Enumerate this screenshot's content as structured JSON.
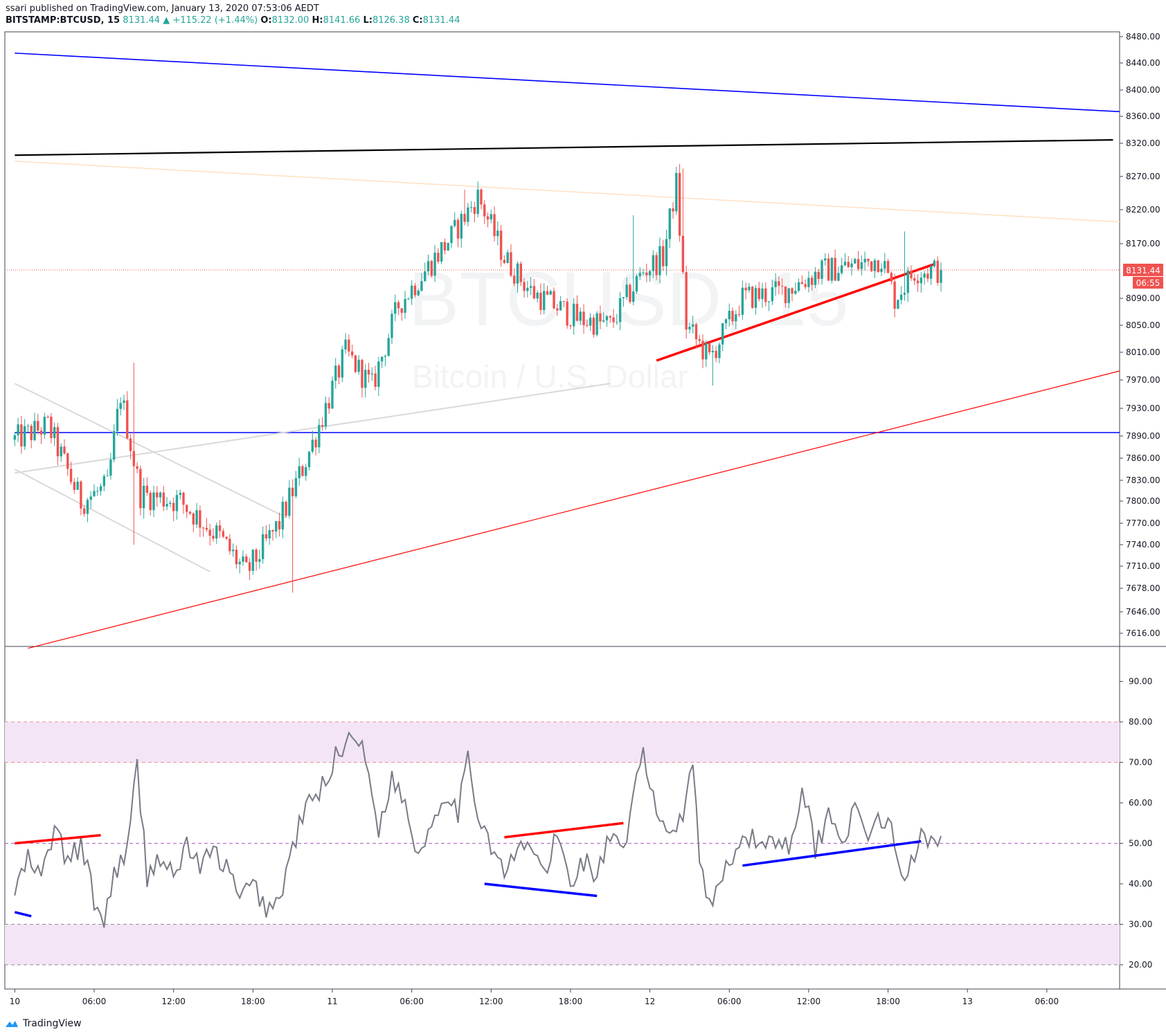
{
  "header": {
    "published": "ssari published on TradingView.com, January 13, 2020 07:53:06 AEDT",
    "symbol": "BITSTAMP:BTCUSD, 15",
    "last": "8131.44",
    "change": "▲ +115.22 (+1.44%)",
    "o_label": "O:",
    "o_value": "8132.00",
    "h_label": "H:",
    "h_value": "8141.66",
    "l_label": "L:",
    "l_value": "8126.38",
    "c_label": "C:",
    "c_value": "8131.44"
  },
  "watermark": {
    "symbol": "BTCUSD, 15",
    "description": "Bitcoin / U.S. Dollar"
  },
  "price_badge": {
    "price": "8131.44",
    "countdown": "06:55"
  },
  "footer": {
    "brand": "TradingView"
  },
  "colors": {
    "up": "#26a69a",
    "down": "#ef5350",
    "blue_line": "#0000ff",
    "black_line": "#000000",
    "red_line": "#ff0000",
    "rsi_line": "#787b86",
    "rsi_band": "#f3e5f5",
    "peach_line": "#ffe0c2"
  },
  "chart_data": [
    {
      "type": "candlestick",
      "symbol": "BITSTAMP:BTCUSD",
      "interval": "15",
      "y_ticks": [
        "8480.00",
        "8440.00",
        "8400.00",
        "8360.00",
        "8320.00",
        "8270.00",
        "8220.00",
        "8170.00",
        "8090.00",
        "8050.00",
        "8010.00",
        "7970.00",
        "7930.00",
        "7890.00",
        "7860.00",
        "7830.00",
        "7800.00",
        "7770.00",
        "7740.00",
        "7710.00",
        "7678.00",
        "7646.00",
        "7616.00"
      ],
      "x_ticks": [
        "10",
        "06:00",
        "12:00",
        "18:00",
        "11",
        "06:00",
        "12:00",
        "18:00",
        "12",
        "06:00",
        "12:00",
        "18:00",
        "13",
        "06:00",
        "12:00",
        "18:00"
      ],
      "current_price": 8131.44,
      "close_path": [
        {
          "t": 0,
          "price": 7885
        },
        {
          "t": 10,
          "price": 7905
        },
        {
          "t": 20,
          "price": 7800
        },
        {
          "t": 28,
          "price": 7820
        },
        {
          "t": 32,
          "price": 7950
        },
        {
          "t": 38,
          "price": 7810
        },
        {
          "t": 50,
          "price": 7800
        },
        {
          "t": 62,
          "price": 7750
        },
        {
          "t": 70,
          "price": 7700
        },
        {
          "t": 80,
          "price": 7770
        },
        {
          "t": 90,
          "price": 7880
        },
        {
          "t": 100,
          "price": 8010
        },
        {
          "t": 108,
          "price": 7960
        },
        {
          "t": 116,
          "price": 8080
        },
        {
          "t": 124,
          "price": 8130
        },
        {
          "t": 132,
          "price": 8180
        },
        {
          "t": 140,
          "price": 8240
        },
        {
          "t": 148,
          "price": 8150
        },
        {
          "t": 156,
          "price": 8100
        },
        {
          "t": 170,
          "price": 8060
        },
        {
          "t": 180,
          "price": 8050
        },
        {
          "t": 190,
          "price": 8130
        },
        {
          "t": 196,
          "price": 8150
        },
        {
          "t": 200,
          "price": 8260
        },
        {
          "t": 203,
          "price": 8050
        },
        {
          "t": 210,
          "price": 8000
        },
        {
          "t": 220,
          "price": 8090
        },
        {
          "t": 232,
          "price": 8100
        },
        {
          "t": 244,
          "price": 8130
        },
        {
          "t": 256,
          "price": 8140
        },
        {
          "t": 262,
          "price": 8150
        },
        {
          "t": 266,
          "price": 8090
        },
        {
          "t": 272,
          "price": 8130
        },
        {
          "t": 280,
          "price": 8131
        }
      ],
      "spikes": [
        {
          "t": 36,
          "high": 7995,
          "low": 7740
        },
        {
          "t": 84,
          "low": 7672
        },
        {
          "t": 136,
          "high": 8250
        },
        {
          "t": 187,
          "high": 8212
        },
        {
          "t": 202,
          "high": 8282
        },
        {
          "t": 211,
          "low": 7962
        },
        {
          "t": 269,
          "high": 8188
        }
      ],
      "trendlines": [
        {
          "color": "blue",
          "from": {
            "t": 0,
            "price": 8455
          },
          "to": {
            "t": 334,
            "price": 8367
          }
        },
        {
          "color": "black",
          "from": {
            "t": 0,
            "price": 8302
          },
          "to": {
            "t": 332,
            "price": 8325
          }
        },
        {
          "color": "peach",
          "from": {
            "t": 0,
            "price": 8293
          },
          "to": {
            "t": 334,
            "price": 8202
          }
        },
        {
          "color": "blue",
          "from": {
            "t": 0,
            "price": 7895
          },
          "to": {
            "t": 334,
            "price": 7895
          }
        },
        {
          "color": "red",
          "from": {
            "t": 4,
            "price": 7595
          },
          "to": {
            "t": 334,
            "price": 7983
          }
        },
        {
          "color": "red-thick",
          "from": {
            "t": 194,
            "price": 7998
          },
          "to": {
            "t": 278,
            "price": 8140
          }
        },
        {
          "color": "lightgray",
          "from": {
            "t": 0,
            "price": 7840
          },
          "to": {
            "t": 180,
            "price": 7965
          }
        },
        {
          "color": "lightgray",
          "from": {
            "t": 0,
            "price": 7965
          },
          "to": {
            "t": 82,
            "price": 7778
          }
        },
        {
          "color": "lightgray",
          "from": {
            "t": 0,
            "price": 7845
          },
          "to": {
            "t": 59,
            "price": 7702
          }
        }
      ]
    },
    {
      "type": "line",
      "indicator": "RSI",
      "y_ticks": [
        "90.00",
        "80.00",
        "70.00",
        "60.00",
        "50.00",
        "40.00",
        "30.00",
        "20.00"
      ],
      "bands": [
        {
          "from": 70,
          "to": 80
        },
        {
          "from": 20,
          "to": 30
        }
      ],
      "dashed_levels": [
        80,
        70,
        50,
        30,
        20
      ],
      "path": [
        {
          "t": 0,
          "v": 38
        },
        {
          "t": 4,
          "v": 46
        },
        {
          "t": 8,
          "v": 41
        },
        {
          "t": 12,
          "v": 54
        },
        {
          "t": 16,
          "v": 45
        },
        {
          "t": 20,
          "v": 50
        },
        {
          "t": 24,
          "v": 36
        },
        {
          "t": 27,
          "v": 30
        },
        {
          "t": 30,
          "v": 43
        },
        {
          "t": 34,
          "v": 48
        },
        {
          "t": 37,
          "v": 69
        },
        {
          "t": 40,
          "v": 42
        },
        {
          "t": 44,
          "v": 47
        },
        {
          "t": 48,
          "v": 41
        },
        {
          "t": 52,
          "v": 50
        },
        {
          "t": 56,
          "v": 44
        },
        {
          "t": 60,
          "v": 48
        },
        {
          "t": 64,
          "v": 44
        },
        {
          "t": 68,
          "v": 36
        },
        {
          "t": 72,
          "v": 40
        },
        {
          "t": 76,
          "v": 34
        },
        {
          "t": 80,
          "v": 36
        },
        {
          "t": 84,
          "v": 49
        },
        {
          "t": 88,
          "v": 59
        },
        {
          "t": 92,
          "v": 62
        },
        {
          "t": 96,
          "v": 70
        },
        {
          "t": 100,
          "v": 75
        },
        {
          "t": 103,
          "v": 78
        },
        {
          "t": 106,
          "v": 70
        },
        {
          "t": 110,
          "v": 54
        },
        {
          "t": 114,
          "v": 66
        },
        {
          "t": 118,
          "v": 60
        },
        {
          "t": 122,
          "v": 47
        },
        {
          "t": 126,
          "v": 55
        },
        {
          "t": 130,
          "v": 63
        },
        {
          "t": 134,
          "v": 58
        },
        {
          "t": 137,
          "v": 70
        },
        {
          "t": 140,
          "v": 58
        },
        {
          "t": 144,
          "v": 50
        },
        {
          "t": 148,
          "v": 42
        },
        {
          "t": 152,
          "v": 48
        },
        {
          "t": 156,
          "v": 50
        },
        {
          "t": 160,
          "v": 42
        },
        {
          "t": 164,
          "v": 52
        },
        {
          "t": 168,
          "v": 40
        },
        {
          "t": 172,
          "v": 46
        },
        {
          "t": 176,
          "v": 42
        },
        {
          "t": 180,
          "v": 52
        },
        {
          "t": 184,
          "v": 46
        },
        {
          "t": 188,
          "v": 66
        },
        {
          "t": 190,
          "v": 73
        },
        {
          "t": 193,
          "v": 60
        },
        {
          "t": 198,
          "v": 52
        },
        {
          "t": 202,
          "v": 58
        },
        {
          "t": 205,
          "v": 72
        },
        {
          "t": 207,
          "v": 45
        },
        {
          "t": 211,
          "v": 34
        },
        {
          "t": 215,
          "v": 45
        },
        {
          "t": 220,
          "v": 52
        },
        {
          "t": 225,
          "v": 50
        },
        {
          "t": 230,
          "v": 51
        },
        {
          "t": 234,
          "v": 49
        },
        {
          "t": 238,
          "v": 64
        },
        {
          "t": 242,
          "v": 49
        },
        {
          "t": 246,
          "v": 57
        },
        {
          "t": 250,
          "v": 52
        },
        {
          "t": 254,
          "v": 57
        },
        {
          "t": 258,
          "v": 53
        },
        {
          "t": 262,
          "v": 56
        },
        {
          "t": 266,
          "v": 51
        },
        {
          "t": 268,
          "v": 40
        },
        {
          "t": 271,
          "v": 45
        },
        {
          "t": 274,
          "v": 54
        },
        {
          "t": 277,
          "v": 51
        },
        {
          "t": 280,
          "v": 52
        }
      ],
      "trendlines": [
        {
          "color": "red",
          "from": {
            "t": 0,
            "v": 50
          },
          "to": {
            "t": 26,
            "v": 52
          }
        },
        {
          "color": "blue",
          "from": {
            "t": 0,
            "v": 33
          },
          "to": {
            "t": 5,
            "v": 32
          }
        },
        {
          "color": "red",
          "from": {
            "t": 148,
            "v": 51.5
          },
          "to": {
            "t": 184,
            "v": 55
          }
        },
        {
          "color": "blue",
          "from": {
            "t": 142,
            "v": 40
          },
          "to": {
            "t": 176,
            "v": 37
          }
        },
        {
          "color": "blue",
          "from": {
            "t": 220,
            "v": 44.5
          },
          "to": {
            "t": 274,
            "v": 50.5
          }
        }
      ]
    }
  ]
}
